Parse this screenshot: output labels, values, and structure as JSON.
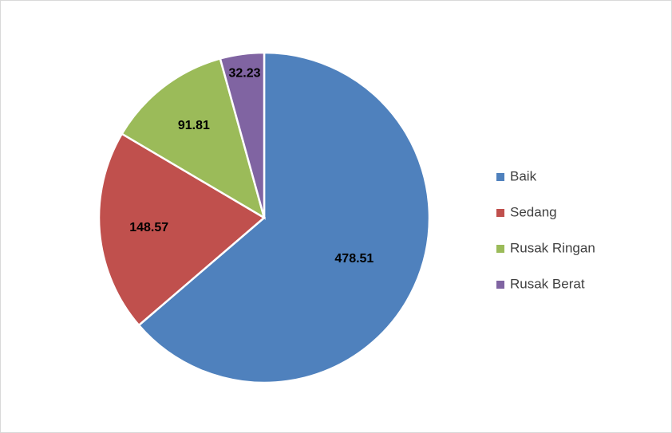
{
  "chart_data": {
    "type": "pie",
    "categories": [
      "Baik",
      "Sedang",
      "Rusak Ringan",
      "Rusak Berat"
    ],
    "values": [
      478.51,
      148.57,
      91.81,
      32.23
    ],
    "colors": [
      "#4f81bd",
      "#c0504d",
      "#9bbb59",
      "#8064a2"
    ],
    "legend": "right"
  }
}
